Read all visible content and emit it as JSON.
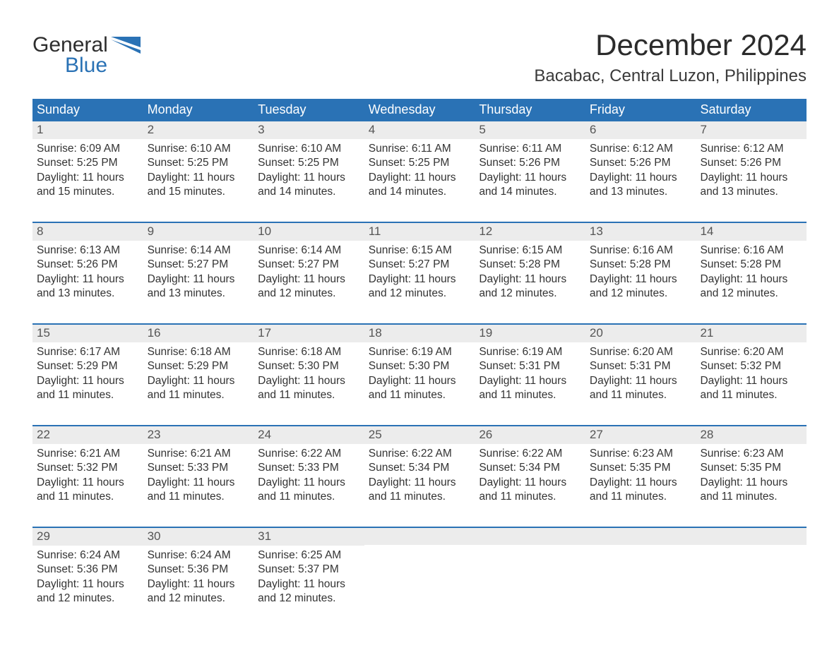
{
  "brand": {
    "word1": "General",
    "word2": "Blue",
    "accent": "#2a72b5"
  },
  "title": "December 2024",
  "location": "Bacabac, Central Luzon, Philippines",
  "colors": {
    "header_bg": "#2a72b5",
    "header_text": "#ffffff",
    "daynum_bg": "#ececec",
    "daynum_text": "#555555",
    "body_text": "#333333",
    "page_bg": "#ffffff",
    "week_divider": "#2a72b5"
  },
  "typography": {
    "title_fontsize": 42,
    "location_fontsize": 24,
    "weekday_fontsize": 18,
    "daynum_fontsize": 17,
    "body_fontsize": 15.5
  },
  "weekdays": [
    "Sunday",
    "Monday",
    "Tuesday",
    "Wednesday",
    "Thursday",
    "Friday",
    "Saturday"
  ],
  "weeks": [
    [
      {
        "n": "1",
        "sunrise": "Sunrise: 6:09 AM",
        "sunset": "Sunset: 5:25 PM",
        "d1": "Daylight: 11 hours",
        "d2": "and 15 minutes."
      },
      {
        "n": "2",
        "sunrise": "Sunrise: 6:10 AM",
        "sunset": "Sunset: 5:25 PM",
        "d1": "Daylight: 11 hours",
        "d2": "and 15 minutes."
      },
      {
        "n": "3",
        "sunrise": "Sunrise: 6:10 AM",
        "sunset": "Sunset: 5:25 PM",
        "d1": "Daylight: 11 hours",
        "d2": "and 14 minutes."
      },
      {
        "n": "4",
        "sunrise": "Sunrise: 6:11 AM",
        "sunset": "Sunset: 5:25 PM",
        "d1": "Daylight: 11 hours",
        "d2": "and 14 minutes."
      },
      {
        "n": "5",
        "sunrise": "Sunrise: 6:11 AM",
        "sunset": "Sunset: 5:26 PM",
        "d1": "Daylight: 11 hours",
        "d2": "and 14 minutes."
      },
      {
        "n": "6",
        "sunrise": "Sunrise: 6:12 AM",
        "sunset": "Sunset: 5:26 PM",
        "d1": "Daylight: 11 hours",
        "d2": "and 13 minutes."
      },
      {
        "n": "7",
        "sunrise": "Sunrise: 6:12 AM",
        "sunset": "Sunset: 5:26 PM",
        "d1": "Daylight: 11 hours",
        "d2": "and 13 minutes."
      }
    ],
    [
      {
        "n": "8",
        "sunrise": "Sunrise: 6:13 AM",
        "sunset": "Sunset: 5:26 PM",
        "d1": "Daylight: 11 hours",
        "d2": "and 13 minutes."
      },
      {
        "n": "9",
        "sunrise": "Sunrise: 6:14 AM",
        "sunset": "Sunset: 5:27 PM",
        "d1": "Daylight: 11 hours",
        "d2": "and 13 minutes."
      },
      {
        "n": "10",
        "sunrise": "Sunrise: 6:14 AM",
        "sunset": "Sunset: 5:27 PM",
        "d1": "Daylight: 11 hours",
        "d2": "and 12 minutes."
      },
      {
        "n": "11",
        "sunrise": "Sunrise: 6:15 AM",
        "sunset": "Sunset: 5:27 PM",
        "d1": "Daylight: 11 hours",
        "d2": "and 12 minutes."
      },
      {
        "n": "12",
        "sunrise": "Sunrise: 6:15 AM",
        "sunset": "Sunset: 5:28 PM",
        "d1": "Daylight: 11 hours",
        "d2": "and 12 minutes."
      },
      {
        "n": "13",
        "sunrise": "Sunrise: 6:16 AM",
        "sunset": "Sunset: 5:28 PM",
        "d1": "Daylight: 11 hours",
        "d2": "and 12 minutes."
      },
      {
        "n": "14",
        "sunrise": "Sunrise: 6:16 AM",
        "sunset": "Sunset: 5:28 PM",
        "d1": "Daylight: 11 hours",
        "d2": "and 12 minutes."
      }
    ],
    [
      {
        "n": "15",
        "sunrise": "Sunrise: 6:17 AM",
        "sunset": "Sunset: 5:29 PM",
        "d1": "Daylight: 11 hours",
        "d2": "and 11 minutes."
      },
      {
        "n": "16",
        "sunrise": "Sunrise: 6:18 AM",
        "sunset": "Sunset: 5:29 PM",
        "d1": "Daylight: 11 hours",
        "d2": "and 11 minutes."
      },
      {
        "n": "17",
        "sunrise": "Sunrise: 6:18 AM",
        "sunset": "Sunset: 5:30 PM",
        "d1": "Daylight: 11 hours",
        "d2": "and 11 minutes."
      },
      {
        "n": "18",
        "sunrise": "Sunrise: 6:19 AM",
        "sunset": "Sunset: 5:30 PM",
        "d1": "Daylight: 11 hours",
        "d2": "and 11 minutes."
      },
      {
        "n": "19",
        "sunrise": "Sunrise: 6:19 AM",
        "sunset": "Sunset: 5:31 PM",
        "d1": "Daylight: 11 hours",
        "d2": "and 11 minutes."
      },
      {
        "n": "20",
        "sunrise": "Sunrise: 6:20 AM",
        "sunset": "Sunset: 5:31 PM",
        "d1": "Daylight: 11 hours",
        "d2": "and 11 minutes."
      },
      {
        "n": "21",
        "sunrise": "Sunrise: 6:20 AM",
        "sunset": "Sunset: 5:32 PM",
        "d1": "Daylight: 11 hours",
        "d2": "and 11 minutes."
      }
    ],
    [
      {
        "n": "22",
        "sunrise": "Sunrise: 6:21 AM",
        "sunset": "Sunset: 5:32 PM",
        "d1": "Daylight: 11 hours",
        "d2": "and 11 minutes."
      },
      {
        "n": "23",
        "sunrise": "Sunrise: 6:21 AM",
        "sunset": "Sunset: 5:33 PM",
        "d1": "Daylight: 11 hours",
        "d2": "and 11 minutes."
      },
      {
        "n": "24",
        "sunrise": "Sunrise: 6:22 AM",
        "sunset": "Sunset: 5:33 PM",
        "d1": "Daylight: 11 hours",
        "d2": "and 11 minutes."
      },
      {
        "n": "25",
        "sunrise": "Sunrise: 6:22 AM",
        "sunset": "Sunset: 5:34 PM",
        "d1": "Daylight: 11 hours",
        "d2": "and 11 minutes."
      },
      {
        "n": "26",
        "sunrise": "Sunrise: 6:22 AM",
        "sunset": "Sunset: 5:34 PM",
        "d1": "Daylight: 11 hours",
        "d2": "and 11 minutes."
      },
      {
        "n": "27",
        "sunrise": "Sunrise: 6:23 AM",
        "sunset": "Sunset: 5:35 PM",
        "d1": "Daylight: 11 hours",
        "d2": "and 11 minutes."
      },
      {
        "n": "28",
        "sunrise": "Sunrise: 6:23 AM",
        "sunset": "Sunset: 5:35 PM",
        "d1": "Daylight: 11 hours",
        "d2": "and 11 minutes."
      }
    ],
    [
      {
        "n": "29",
        "sunrise": "Sunrise: 6:24 AM",
        "sunset": "Sunset: 5:36 PM",
        "d1": "Daylight: 11 hours",
        "d2": "and 12 minutes."
      },
      {
        "n": "30",
        "sunrise": "Sunrise: 6:24 AM",
        "sunset": "Sunset: 5:36 PM",
        "d1": "Daylight: 11 hours",
        "d2": "and 12 minutes."
      },
      {
        "n": "31",
        "sunrise": "Sunrise: 6:25 AM",
        "sunset": "Sunset: 5:37 PM",
        "d1": "Daylight: 11 hours",
        "d2": "and 12 minutes."
      },
      null,
      null,
      null,
      null
    ]
  ]
}
